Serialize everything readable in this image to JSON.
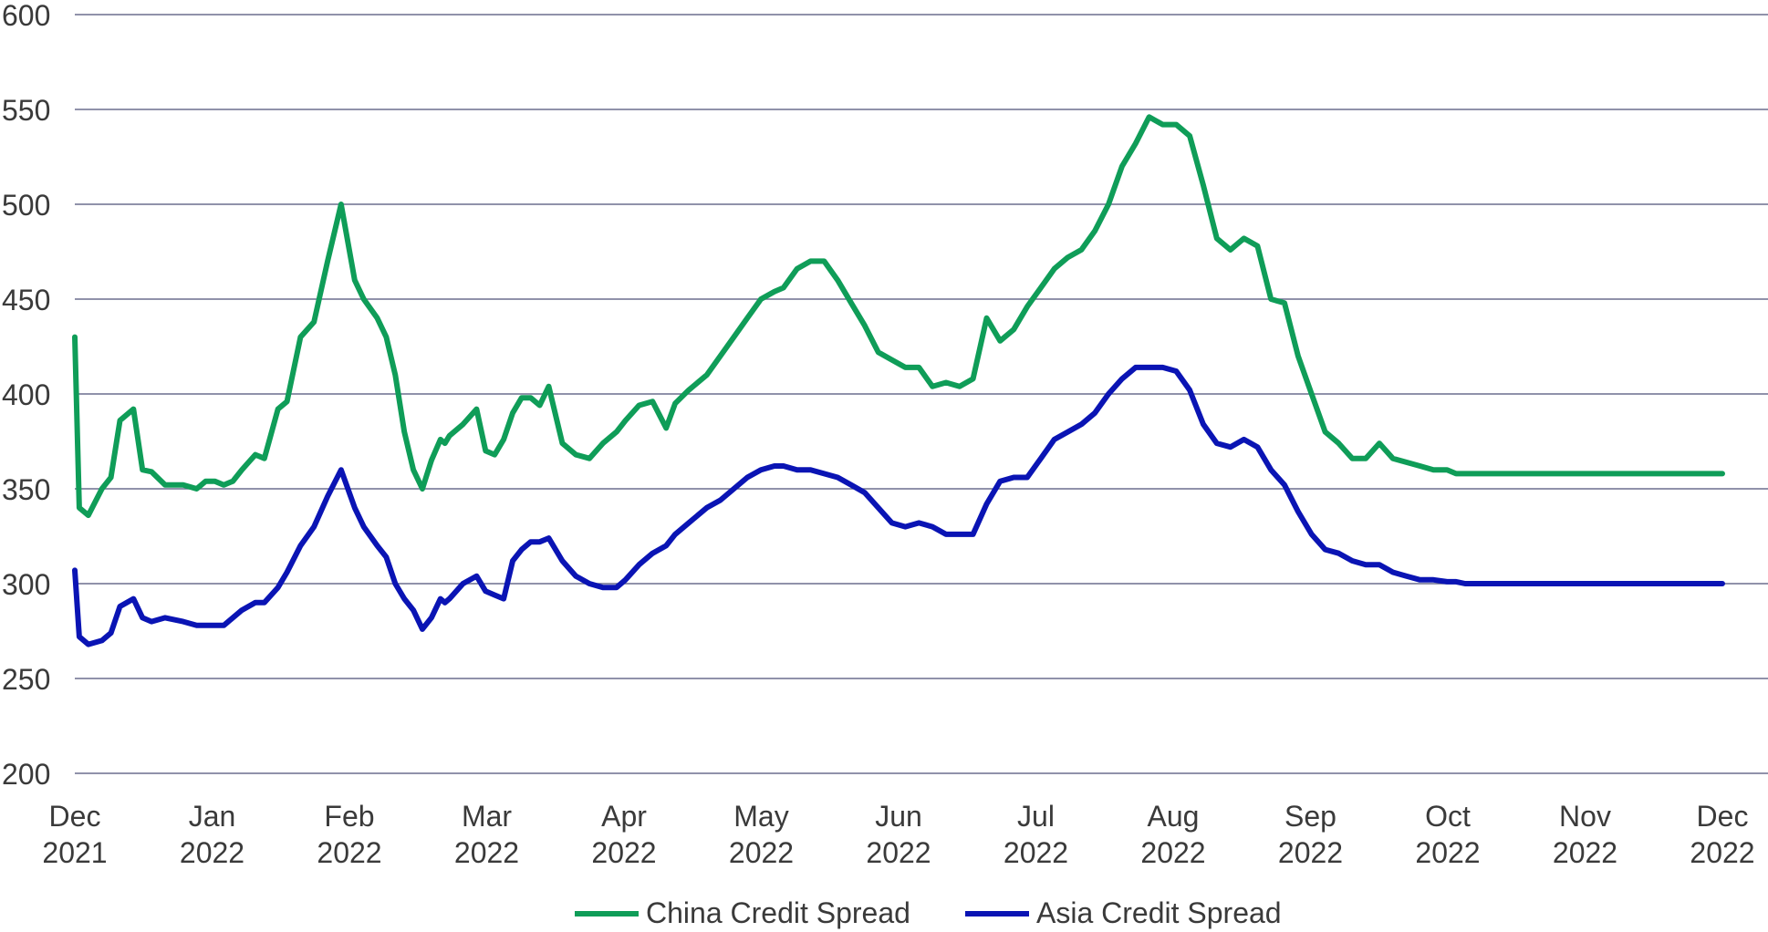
{
  "chart_data": {
    "type": "line",
    "title": "",
    "xlabel": "",
    "ylabel": "",
    "ylim": [
      200,
      600
    ],
    "y_ticks": [
      "600",
      "550",
      "500",
      "450",
      "400",
      "350",
      "300",
      "250",
      "200"
    ],
    "grid": "horizontal",
    "legend_position": "bottom",
    "x_ticks": [
      {
        "month": "Dec",
        "year": "2021"
      },
      {
        "month": "Jan",
        "year": "2022"
      },
      {
        "month": "Feb",
        "year": "2022"
      },
      {
        "month": "Mar",
        "year": "2022"
      },
      {
        "month": "Apr",
        "year": "2022"
      },
      {
        "month": "May",
        "year": "2022"
      },
      {
        "month": "Jun",
        "year": "2022"
      },
      {
        "month": "Jul",
        "year": "2022"
      },
      {
        "month": "Aug",
        "year": "2022"
      },
      {
        "month": "Sep",
        "year": "2022"
      },
      {
        "month": "Oct",
        "year": "2022"
      },
      {
        "month": "Nov",
        "year": "2022"
      },
      {
        "month": "Dec",
        "year": "2022"
      }
    ],
    "x": [
      "2021-12-01",
      "2021-12-02",
      "2021-12-04",
      "2021-12-07",
      "2021-12-09",
      "2021-12-11",
      "2021-12-14",
      "2021-12-16",
      "2021-12-18",
      "2021-12-21",
      "2021-12-25",
      "2021-12-28",
      "2021-12-30",
      "2022-01-01",
      "2022-01-03",
      "2022-01-05",
      "2022-01-07",
      "2022-01-10",
      "2022-01-12",
      "2022-01-15",
      "2022-01-17",
      "2022-01-20",
      "2022-01-23",
      "2022-01-26",
      "2022-01-29",
      "2022-02-01",
      "2022-02-03",
      "2022-02-06",
      "2022-02-08",
      "2022-02-10",
      "2022-02-12",
      "2022-02-14",
      "2022-02-16",
      "2022-02-18",
      "2022-02-20",
      "2022-02-21",
      "2022-02-22",
      "2022-02-25",
      "2022-02-28",
      "2022-03-02",
      "2022-03-04",
      "2022-03-06",
      "2022-03-08",
      "2022-03-10",
      "2022-03-12",
      "2022-03-14",
      "2022-03-16",
      "2022-03-19",
      "2022-03-22",
      "2022-03-25",
      "2022-03-28",
      "2022-03-31",
      "2022-04-02",
      "2022-04-05",
      "2022-04-08",
      "2022-04-11",
      "2022-04-13",
      "2022-04-16",
      "2022-04-20",
      "2022-04-23",
      "2022-04-26",
      "2022-04-29",
      "2022-05-02",
      "2022-05-05",
      "2022-05-07",
      "2022-05-10",
      "2022-05-13",
      "2022-05-16",
      "2022-05-19",
      "2022-05-22",
      "2022-05-25",
      "2022-05-28",
      "2022-05-31",
      "2022-06-03",
      "2022-06-06",
      "2022-06-09",
      "2022-06-12",
      "2022-06-15",
      "2022-06-18",
      "2022-06-21",
      "2022-06-24",
      "2022-06-27",
      "2022-06-30",
      "2022-07-03",
      "2022-07-06",
      "2022-07-09",
      "2022-07-12",
      "2022-07-15",
      "2022-07-18",
      "2022-07-21",
      "2022-07-24",
      "2022-07-27",
      "2022-07-30",
      "2022-08-02",
      "2022-08-05",
      "2022-08-08",
      "2022-08-11",
      "2022-08-14",
      "2022-08-17",
      "2022-08-20",
      "2022-08-23",
      "2022-08-26",
      "2022-08-29",
      "2022-09-01",
      "2022-09-04",
      "2022-09-07",
      "2022-09-10",
      "2022-09-13",
      "2022-09-16",
      "2022-09-19",
      "2022-09-22",
      "2022-09-25",
      "2022-09-28",
      "2022-10-01",
      "2022-10-03",
      "2022-10-05",
      "2022-10-08",
      "2022-10-11",
      "2022-10-14",
      "2022-10-17",
      "2022-10-20",
      "2022-10-23",
      "2022-10-26",
      "2022-10-29",
      "2022-11-01",
      "2022-11-04",
      "2022-11-07",
      "2022-11-10",
      "2022-11-13",
      "2022-11-16",
      "2022-11-19",
      "2022-11-22",
      "2022-11-25",
      "2022-11-28",
      "2022-12-01"
    ],
    "series": [
      {
        "name": "China Credit Spread",
        "color": "#0f9d58",
        "values": [
          430,
          340,
          336,
          350,
          356,
          386,
          392,
          360,
          359,
          352,
          352,
          350,
          354,
          354,
          352,
          354,
          360,
          368,
          366,
          392,
          396,
          430,
          438,
          470,
          500,
          460,
          450,
          440,
          430,
          410,
          380,
          360,
          350,
          365,
          376,
          374,
          378,
          384,
          392,
          370,
          368,
          376,
          390,
          398,
          398,
          394,
          404,
          374,
          368,
          366,
          374,
          380,
          386,
          394,
          396,
          382,
          395,
          402,
          410,
          420,
          430,
          440,
          450,
          454,
          456,
          466,
          470,
          470,
          460,
          448,
          436,
          422,
          418,
          414,
          414,
          404,
          406,
          404,
          408,
          440,
          428,
          434,
          446,
          456,
          466,
          472,
          476,
          486,
          500,
          520,
          532,
          546,
          542,
          542,
          536,
          510,
          482,
          476,
          482,
          478,
          450,
          448,
          420,
          400,
          380,
          374,
          366,
          366,
          374,
          366,
          364,
          362,
          360,
          360,
          358,
          358,
          358,
          358,
          358,
          358,
          358,
          358,
          358,
          358,
          358,
          358,
          358,
          358,
          358,
          358,
          358,
          358,
          358,
          358,
          358
        ]
      },
      {
        "name": "Asia Credit Spread",
        "color": "#0a14b4",
        "values": [
          307,
          272,
          268,
          270,
          274,
          288,
          292,
          282,
          280,
          282,
          280,
          278,
          278,
          278,
          278,
          282,
          286,
          290,
          290,
          298,
          306,
          320,
          330,
          346,
          360,
          340,
          330,
          320,
          314,
          300,
          292,
          286,
          276,
          282,
          292,
          290,
          292,
          300,
          304,
          296,
          294,
          292,
          312,
          318,
          322,
          322,
          324,
          312,
          304,
          300,
          298,
          298,
          302,
          310,
          316,
          320,
          326,
          332,
          340,
          344,
          350,
          356,
          360,
          362,
          362,
          360,
          360,
          358,
          356,
          352,
          348,
          340,
          332,
          330,
          332,
          330,
          326,
          326,
          326,
          342,
          354,
          356,
          356,
          366,
          376,
          380,
          384,
          390,
          400,
          408,
          414,
          414,
          414,
          412,
          402,
          384,
          374,
          372,
          376,
          372,
          360,
          352,
          338,
          326,
          318,
          316,
          312,
          310,
          310,
          306,
          304,
          302,
          302,
          301,
          301,
          300,
          300,
          300,
          300,
          300,
          300,
          300,
          300,
          300,
          300,
          300,
          300,
          300,
          300,
          300,
          300,
          300,
          300,
          300,
          300
        ]
      }
    ]
  }
}
